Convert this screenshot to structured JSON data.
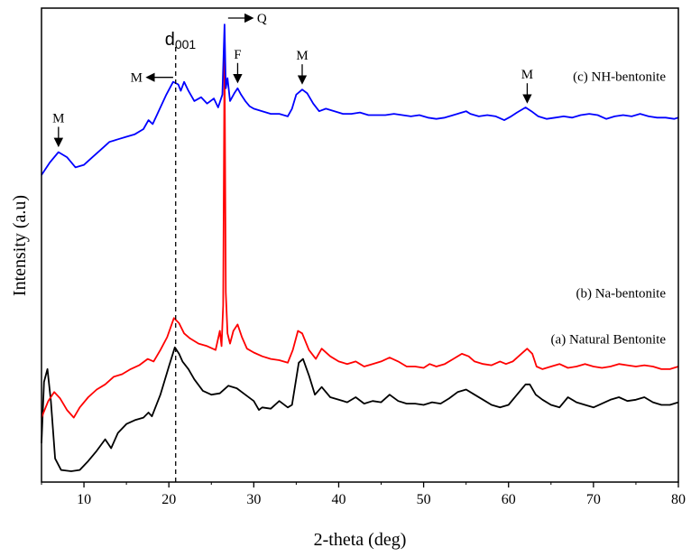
{
  "chart_data": {
    "type": "line",
    "title": "",
    "xlabel": "2-theta (deg)",
    "ylabel": "Intensity (a.u)",
    "xlim": [
      5,
      80
    ],
    "x_ticks": [
      10,
      20,
      30,
      40,
      50,
      60,
      70,
      80
    ],
    "y_ticks_shown": false,
    "grid": false,
    "reference_line": {
      "x": 20.8,
      "style": "dashed",
      "label_main": "d",
      "label_sub": "001"
    },
    "series": [
      {
        "label": "(a) Natural Bentonite",
        "color": "#000000",
        "points": [
          [
            5.0,
            0.22
          ],
          [
            5.3,
            0.7
          ],
          [
            5.7,
            0.8
          ],
          [
            6.1,
            0.55
          ],
          [
            6.6,
            0.1
          ],
          [
            7.3,
            0.01
          ],
          [
            8.5,
            0.0
          ],
          [
            9.5,
            0.01
          ],
          [
            10.5,
            0.08
          ],
          [
            11.5,
            0.16
          ],
          [
            12.5,
            0.25
          ],
          [
            13.2,
            0.18
          ],
          [
            14.0,
            0.3
          ],
          [
            15.0,
            0.37
          ],
          [
            16.0,
            0.4
          ],
          [
            17.0,
            0.42
          ],
          [
            17.6,
            0.46
          ],
          [
            18.0,
            0.43
          ],
          [
            19.0,
            0.6
          ],
          [
            20.0,
            0.82
          ],
          [
            20.7,
            0.97
          ],
          [
            21.2,
            0.92
          ],
          [
            21.6,
            0.86
          ],
          [
            22.3,
            0.8
          ],
          [
            23.0,
            0.72
          ],
          [
            24.0,
            0.63
          ],
          [
            25.0,
            0.6
          ],
          [
            26.0,
            0.61
          ],
          [
            27.0,
            0.67
          ],
          [
            28.0,
            0.65
          ],
          [
            29.0,
            0.6
          ],
          [
            30.0,
            0.55
          ],
          [
            30.6,
            0.48
          ],
          [
            31.0,
            0.5
          ],
          [
            32.0,
            0.49
          ],
          [
            33.0,
            0.55
          ],
          [
            34.0,
            0.5
          ],
          [
            34.5,
            0.52
          ],
          [
            35.3,
            0.85
          ],
          [
            35.8,
            0.88
          ],
          [
            36.5,
            0.75
          ],
          [
            37.2,
            0.6
          ],
          [
            38.0,
            0.66
          ],
          [
            39.0,
            0.58
          ],
          [
            40.0,
            0.56
          ],
          [
            41.0,
            0.54
          ],
          [
            42.0,
            0.58
          ],
          [
            43.0,
            0.53
          ],
          [
            44.0,
            0.55
          ],
          [
            45.0,
            0.54
          ],
          [
            46.0,
            0.6
          ],
          [
            47.0,
            0.55
          ],
          [
            48.0,
            0.53
          ],
          [
            49.0,
            0.53
          ],
          [
            50.0,
            0.52
          ],
          [
            51.0,
            0.54
          ],
          [
            52.0,
            0.53
          ],
          [
            53.0,
            0.57
          ],
          [
            54.0,
            0.62
          ],
          [
            55.0,
            0.64
          ],
          [
            56.0,
            0.6
          ],
          [
            57.0,
            0.56
          ],
          [
            58.0,
            0.52
          ],
          [
            59.0,
            0.5
          ],
          [
            60.0,
            0.52
          ],
          [
            61.0,
            0.6
          ],
          [
            62.0,
            0.68
          ],
          [
            62.5,
            0.68
          ],
          [
            63.2,
            0.6
          ],
          [
            64.0,
            0.56
          ],
          [
            65.0,
            0.52
          ],
          [
            66.0,
            0.5
          ],
          [
            67.0,
            0.58
          ],
          [
            68.0,
            0.54
          ],
          [
            69.0,
            0.52
          ],
          [
            70.0,
            0.5
          ],
          [
            71.0,
            0.53
          ],
          [
            72.0,
            0.56
          ],
          [
            73.0,
            0.58
          ],
          [
            74.0,
            0.55
          ],
          [
            75.0,
            0.56
          ],
          [
            76.0,
            0.58
          ],
          [
            77.0,
            0.54
          ],
          [
            78.0,
            0.52
          ],
          [
            79.0,
            0.52
          ],
          [
            80.0,
            0.54
          ]
        ]
      },
      {
        "label": "(b) Na-bentonite",
        "color": "#ff0000",
        "points": [
          [
            5.0,
            0.42
          ],
          [
            5.8,
            0.55
          ],
          [
            6.5,
            0.62
          ],
          [
            7.2,
            0.57
          ],
          [
            8.0,
            0.48
          ],
          [
            8.8,
            0.42
          ],
          [
            9.5,
            0.5
          ],
          [
            10.5,
            0.58
          ],
          [
            11.5,
            0.64
          ],
          [
            12.5,
            0.68
          ],
          [
            13.5,
            0.74
          ],
          [
            14.5,
            0.76
          ],
          [
            15.5,
            0.8
          ],
          [
            16.5,
            0.83
          ],
          [
            17.5,
            0.88
          ],
          [
            18.2,
            0.86
          ],
          [
            19.0,
            0.95
          ],
          [
            19.8,
            1.05
          ],
          [
            20.6,
            1.2
          ],
          [
            21.2,
            1.16
          ],
          [
            21.8,
            1.08
          ],
          [
            22.5,
            1.04
          ],
          [
            23.5,
            1.0
          ],
          [
            24.5,
            0.98
          ],
          [
            25.5,
            0.95
          ],
          [
            26.0,
            1.1
          ],
          [
            26.2,
            0.98
          ],
          [
            26.4,
            1.3
          ],
          [
            26.55,
            3.3
          ],
          [
            26.7,
            1.4
          ],
          [
            26.9,
            1.08
          ],
          [
            27.2,
            1.0
          ],
          [
            27.6,
            1.1
          ],
          [
            28.1,
            1.15
          ],
          [
            28.6,
            1.05
          ],
          [
            29.2,
            0.96
          ],
          [
            30.0,
            0.93
          ],
          [
            31.0,
            0.9
          ],
          [
            32.0,
            0.88
          ],
          [
            33.0,
            0.87
          ],
          [
            34.0,
            0.85
          ],
          [
            34.6,
            0.95
          ],
          [
            35.2,
            1.1
          ],
          [
            35.7,
            1.08
          ],
          [
            36.5,
            0.95
          ],
          [
            37.3,
            0.88
          ],
          [
            38.0,
            0.96
          ],
          [
            39.0,
            0.9
          ],
          [
            40.0,
            0.86
          ],
          [
            41.0,
            0.84
          ],
          [
            42.0,
            0.86
          ],
          [
            42.5,
            0.84
          ],
          [
            43.0,
            0.82
          ],
          [
            44.0,
            0.84
          ],
          [
            45.0,
            0.86
          ],
          [
            46.0,
            0.89
          ],
          [
            47.0,
            0.86
          ],
          [
            48.0,
            0.82
          ],
          [
            49.0,
            0.82
          ],
          [
            50.0,
            0.81
          ],
          [
            50.7,
            0.84
          ],
          [
            51.5,
            0.82
          ],
          [
            52.5,
            0.84
          ],
          [
            53.5,
            0.88
          ],
          [
            54.5,
            0.92
          ],
          [
            55.3,
            0.9
          ],
          [
            56.0,
            0.86
          ],
          [
            57.0,
            0.84
          ],
          [
            58.0,
            0.83
          ],
          [
            59.0,
            0.86
          ],
          [
            59.7,
            0.84
          ],
          [
            60.5,
            0.86
          ],
          [
            61.5,
            0.92
          ],
          [
            62.2,
            0.96
          ],
          [
            62.8,
            0.92
          ],
          [
            63.3,
            0.82
          ],
          [
            64.0,
            0.8
          ],
          [
            65.0,
            0.82
          ],
          [
            66.0,
            0.84
          ],
          [
            67.0,
            0.81
          ],
          [
            68.0,
            0.82
          ],
          [
            69.0,
            0.84
          ],
          [
            70.0,
            0.82
          ],
          [
            71.0,
            0.81
          ],
          [
            72.0,
            0.82
          ],
          [
            73.0,
            0.84
          ],
          [
            74.0,
            0.83
          ],
          [
            75.0,
            0.82
          ],
          [
            76.0,
            0.83
          ],
          [
            77.0,
            0.82
          ],
          [
            78.0,
            0.8
          ],
          [
            79.0,
            0.8
          ],
          [
            80.0,
            0.82
          ]
        ]
      },
      {
        "label": "(c) NH-bentonite",
        "color": "#0000ff",
        "points": [
          [
            5.0,
            2.32
          ],
          [
            6.0,
            2.42
          ],
          [
            7.0,
            2.5
          ],
          [
            8.0,
            2.46
          ],
          [
            9.0,
            2.38
          ],
          [
            10.0,
            2.4
          ],
          [
            11.0,
            2.46
          ],
          [
            12.0,
            2.52
          ],
          [
            13.0,
            2.58
          ],
          [
            14.0,
            2.6
          ],
          [
            15.0,
            2.62
          ],
          [
            16.0,
            2.64
          ],
          [
            17.0,
            2.68
          ],
          [
            17.6,
            2.75
          ],
          [
            18.1,
            2.72
          ],
          [
            19.0,
            2.85
          ],
          [
            19.7,
            2.95
          ],
          [
            20.5,
            3.05
          ],
          [
            21.1,
            3.03
          ],
          [
            21.4,
            2.98
          ],
          [
            21.8,
            3.05
          ],
          [
            22.3,
            2.98
          ],
          [
            23.0,
            2.9
          ],
          [
            23.8,
            2.93
          ],
          [
            24.5,
            2.88
          ],
          [
            25.3,
            2.92
          ],
          [
            25.8,
            2.85
          ],
          [
            26.3,
            2.95
          ],
          [
            26.55,
            3.5
          ],
          [
            26.7,
            3.0
          ],
          [
            26.9,
            3.08
          ],
          [
            27.2,
            2.9
          ],
          [
            27.7,
            2.96
          ],
          [
            28.1,
            3.0
          ],
          [
            28.5,
            2.95
          ],
          [
            29.0,
            2.9
          ],
          [
            29.5,
            2.86
          ],
          [
            30.0,
            2.84
          ],
          [
            31.0,
            2.82
          ],
          [
            32.0,
            2.8
          ],
          [
            33.0,
            2.8
          ],
          [
            34.0,
            2.78
          ],
          [
            34.5,
            2.84
          ],
          [
            35.0,
            2.95
          ],
          [
            35.7,
            2.99
          ],
          [
            36.3,
            2.96
          ],
          [
            37.0,
            2.88
          ],
          [
            37.7,
            2.82
          ],
          [
            38.5,
            2.84
          ],
          [
            39.5,
            2.82
          ],
          [
            40.5,
            2.8
          ],
          [
            41.5,
            2.8
          ],
          [
            42.5,
            2.81
          ],
          [
            43.5,
            2.79
          ],
          [
            44.5,
            2.79
          ],
          [
            45.5,
            2.79
          ],
          [
            46.5,
            2.8
          ],
          [
            47.5,
            2.79
          ],
          [
            48.5,
            2.78
          ],
          [
            49.5,
            2.79
          ],
          [
            50.5,
            2.77
          ],
          [
            51.5,
            2.76
          ],
          [
            52.5,
            2.77
          ],
          [
            53.5,
            2.79
          ],
          [
            54.5,
            2.81
          ],
          [
            55.0,
            2.82
          ],
          [
            55.5,
            2.8
          ],
          [
            56.5,
            2.78
          ],
          [
            57.5,
            2.79
          ],
          [
            58.5,
            2.78
          ],
          [
            59.5,
            2.75
          ],
          [
            60.3,
            2.78
          ],
          [
            61.0,
            2.81
          ],
          [
            62.0,
            2.85
          ],
          [
            62.7,
            2.82
          ],
          [
            63.5,
            2.78
          ],
          [
            64.5,
            2.76
          ],
          [
            65.5,
            2.77
          ],
          [
            66.5,
            2.78
          ],
          [
            67.5,
            2.77
          ],
          [
            68.5,
            2.79
          ],
          [
            69.5,
            2.8
          ],
          [
            70.5,
            2.79
          ],
          [
            71.5,
            2.76
          ],
          [
            72.5,
            2.78
          ],
          [
            73.5,
            2.79
          ],
          [
            74.5,
            2.78
          ],
          [
            75.5,
            2.8
          ],
          [
            76.5,
            2.78
          ],
          [
            77.5,
            2.77
          ],
          [
            78.5,
            2.77
          ],
          [
            79.5,
            2.76
          ],
          [
            80.0,
            2.77
          ]
        ]
      }
    ],
    "ylim": [
      0,
      3.55
    ],
    "annotations": [
      {
        "text": "M",
        "x": 7.0,
        "arrow": "up",
        "series": "(c) NH-bentonite"
      },
      {
        "text": "M",
        "x": 20.5,
        "arrow": "left",
        "series": "(c) NH-bentonite"
      },
      {
        "text": "Q",
        "x": 26.55,
        "arrow": "right",
        "series": "(c) NH-bentonite"
      },
      {
        "text": "F",
        "x": 28.1,
        "arrow": "up",
        "series": "(c) NH-bentonite"
      },
      {
        "text": "M",
        "x": 35.7,
        "arrow": "up",
        "series": "(c) NH-bentonite"
      },
      {
        "text": "M",
        "x": 62.2,
        "arrow": "up",
        "series": "(c) NH-bentonite"
      }
    ]
  }
}
